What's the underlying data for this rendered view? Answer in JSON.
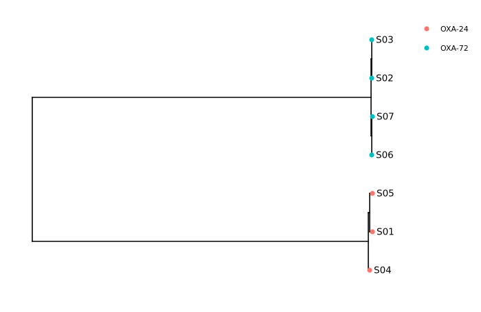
{
  "tree": {
    "branch_color": "#000000",
    "nodes": {
      "root": {
        "children": [
          "A",
          "B"
        ]
      },
      "A": {
        "children": [
          "A1",
          "A2"
        ]
      },
      "A1": {
        "children": [
          "S03",
          "S02"
        ]
      },
      "A2": {
        "children": [
          "S07",
          "S06"
        ]
      },
      "B": {
        "children": [
          "B1",
          "S04"
        ]
      },
      "B1": {
        "children": [
          "S05",
          "S01"
        ]
      }
    },
    "tips": [
      {
        "label": "S03",
        "group": "OXA-72"
      },
      {
        "label": "S02",
        "group": "OXA-72"
      },
      {
        "label": "S07",
        "group": "OXA-72"
      },
      {
        "label": "S06",
        "group": "OXA-72"
      },
      {
        "label": "S05",
        "group": "OXA-24"
      },
      {
        "label": "S01",
        "group": "OXA-24"
      },
      {
        "label": "S04",
        "group": "OXA-24"
      }
    ]
  },
  "legend": {
    "placement": "top-right",
    "items": [
      {
        "label": "OXA-24",
        "color": "#F8766D"
      },
      {
        "label": "OXA-72",
        "color": "#00BFC4"
      }
    ]
  }
}
